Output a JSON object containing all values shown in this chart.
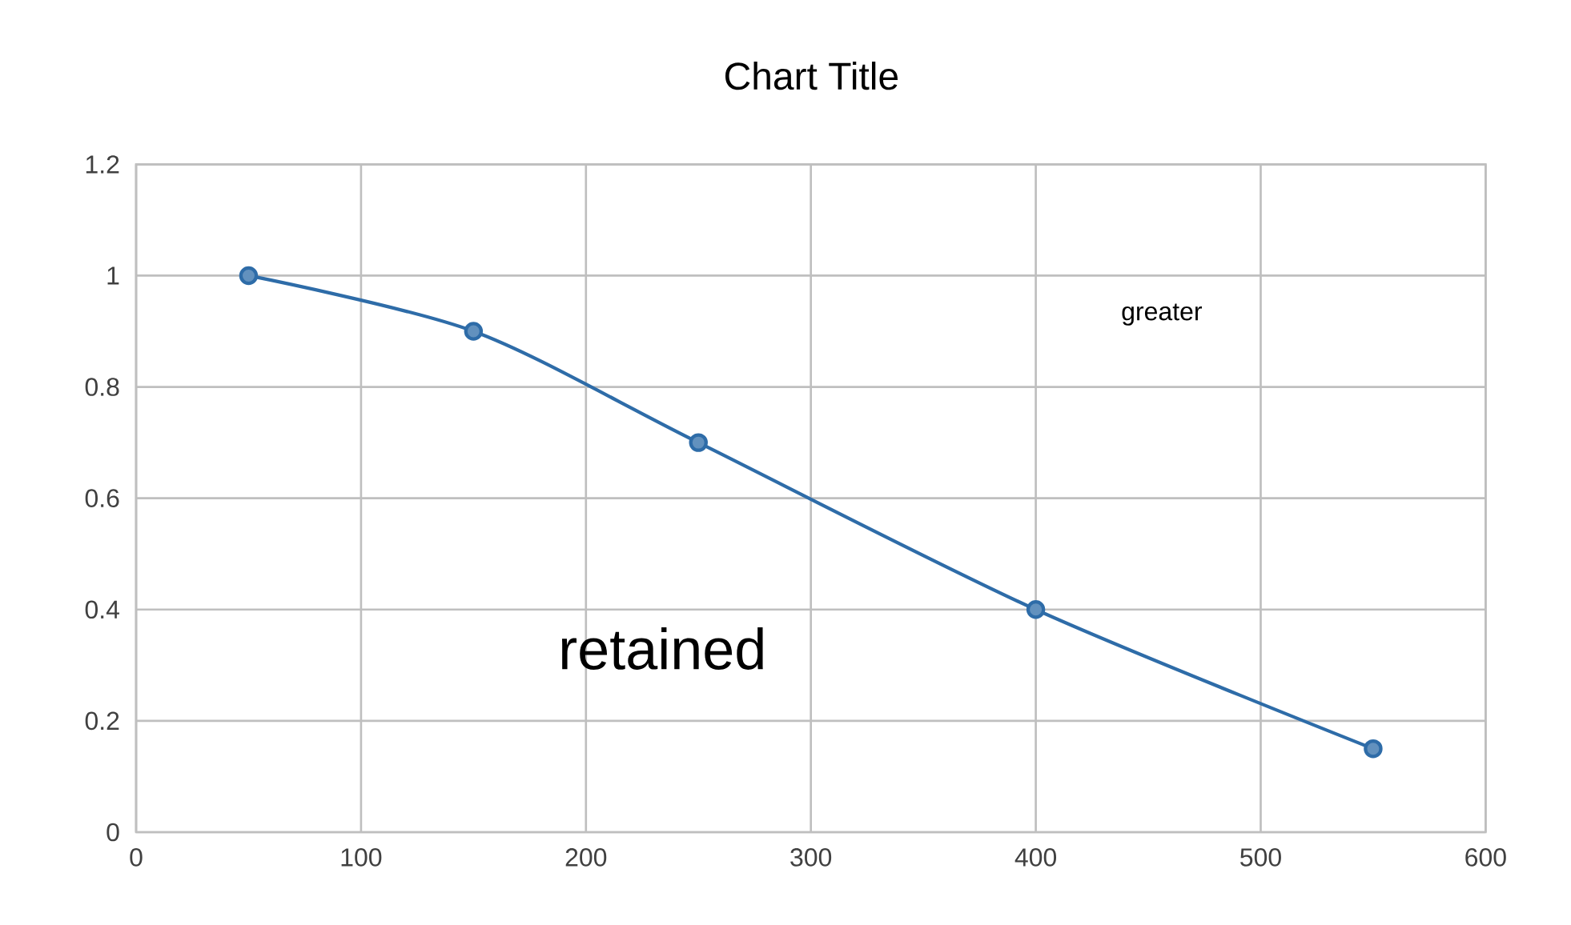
{
  "chart_data": {
    "type": "line",
    "title": "Chart Title",
    "x": [
      50,
      150,
      250,
      400,
      550
    ],
    "series": [
      {
        "color": "#2e6ca8",
        "values": [
          1,
          0.9,
          0.7,
          0.4,
          0.15
        ]
      }
    ],
    "xlim": [
      0,
      600
    ],
    "xticks": [
      0,
      100,
      200,
      300,
      400,
      500,
      600
    ],
    "ylim": [
      0,
      1.2
    ],
    "yticks": [
      0,
      0.2,
      0.4,
      0.6,
      0.8,
      1,
      1.2
    ],
    "grid": true,
    "marker": "circle",
    "line_style": "solid",
    "annotations": [
      "greater",
      "retained"
    ]
  }
}
